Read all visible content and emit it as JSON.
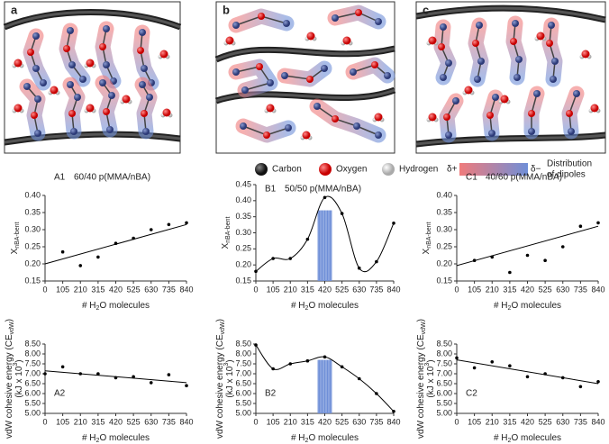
{
  "illustration": {
    "panels": [
      "a",
      "b",
      "c"
    ],
    "legend": {
      "atoms": [
        "Carbon",
        "Oxygen",
        "Hydrogen"
      ],
      "delta_plus": "δ+",
      "delta_minus": "δ−",
      "dipoles": [
        "Distribution",
        "of dipoles"
      ]
    }
  },
  "chart_data": [
    {
      "type": "scatter",
      "label": "A1",
      "title": "60/40 p(MMA/nBA)",
      "x": [
        105,
        210,
        315,
        420,
        525,
        630,
        735,
        840
      ],
      "values": [
        0.235,
        0.195,
        0.22,
        0.26,
        0.275,
        0.3,
        0.315,
        0.32
      ],
      "fit": {
        "x": [
          0,
          840
        ],
        "values": [
          0.2,
          0.315
        ]
      },
      "color": "#000000",
      "xlim": [
        0,
        840
      ],
      "xticks": [
        0,
        105,
        210,
        315,
        420,
        525,
        630,
        735,
        840
      ],
      "ylim": [
        0.15,
        0.4
      ],
      "yticks": [
        {
          "value": 0.15,
          "label": "0.15"
        },
        {
          "value": 0.2,
          "label": "0.20"
        },
        {
          "value": 0.25,
          "label": "0.25"
        },
        {
          "value": 0.3,
          "label": "0.30"
        },
        {
          "value": 0.35,
          "label": "0.35"
        },
        {
          "value": 0.4,
          "label": "0.40"
        }
      ],
      "xlabel": [
        "# H",
        "2",
        "O molecules"
      ],
      "ylabel": [
        "X",
        "nBA-bent"
      ]
    },
    {
      "type": "line",
      "label": "B1",
      "title": "50/50 p(MMA/nBA)",
      "x": [
        0,
        105,
        210,
        315,
        420,
        525,
        630,
        735,
        840
      ],
      "values": [
        0.18,
        0.22,
        0.22,
        0.28,
        0.41,
        0.36,
        0.19,
        0.21,
        0.33
      ],
      "highlight": {
        "x": [
          380,
          460
        ],
        "top": 0.37
      },
      "color": "#000000",
      "highlight_color": "#6f8fd8",
      "xlim": [
        0,
        840
      ],
      "xticks": [
        0,
        105,
        210,
        315,
        420,
        525,
        630,
        735,
        840
      ],
      "ylim": [
        0.15,
        0.45
      ],
      "yticks": [
        {
          "value": 0.15,
          "label": "0.15"
        },
        {
          "value": 0.2,
          "label": "0.20"
        },
        {
          "value": 0.25,
          "label": "0.25"
        },
        {
          "value": 0.3,
          "label": "0.30"
        },
        {
          "value": 0.35,
          "label": "0.35"
        },
        {
          "value": 0.4,
          "label": "0.40"
        },
        {
          "value": 0.45,
          "label": "0.45"
        }
      ],
      "xlabel": [
        "# H",
        "2",
        "O molecules"
      ],
      "ylabel": [
        "X",
        "nBA-bent"
      ]
    },
    {
      "type": "scatter",
      "label": "C1",
      "title": "40/60 p(MMA/nBA)",
      "x": [
        105,
        210,
        315,
        420,
        525,
        630,
        735,
        840
      ],
      "values": [
        0.21,
        0.22,
        0.175,
        0.225,
        0.21,
        0.25,
        0.31,
        0.32
      ],
      "fit": {
        "x": [
          0,
          840
        ],
        "values": [
          0.195,
          0.31
        ]
      },
      "color": "#000000",
      "xlim": [
        0,
        840
      ],
      "xticks": [
        0,
        105,
        210,
        315,
        420,
        525,
        630,
        735,
        840
      ],
      "ylim": [
        0.15,
        0.4
      ],
      "yticks": [
        {
          "value": 0.15,
          "label": "0.15"
        },
        {
          "value": 0.2,
          "label": "0.20"
        },
        {
          "value": 0.25,
          "label": "0.25"
        },
        {
          "value": 0.3,
          "label": "0.30"
        },
        {
          "value": 0.35,
          "label": "0.35"
        },
        {
          "value": 0.4,
          "label": "0.40"
        }
      ],
      "xlabel": [
        "# H",
        "2",
        "O molecules"
      ],
      "ylabel": [
        "X",
        "nBA-bent"
      ]
    },
    {
      "type": "scatter",
      "label": "A2",
      "x": [
        0,
        105,
        210,
        315,
        420,
        525,
        630,
        735,
        840
      ],
      "values": [
        7.0,
        7.35,
        7.0,
        7.0,
        6.8,
        6.85,
        6.55,
        6.95,
        6.4
      ],
      "fit": {
        "x": [
          0,
          840
        ],
        "values": [
          7.15,
          6.55
        ]
      },
      "color": "#000000",
      "xlim": [
        0,
        840
      ],
      "xticks": [
        0,
        105,
        210,
        315,
        420,
        525,
        630,
        735,
        840
      ],
      "ylim": [
        5,
        8.5
      ],
      "yticks": [
        {
          "value": 5,
          "label": "5.00"
        },
        {
          "value": 5.5,
          "label": "5.50"
        },
        {
          "value": 6,
          "label": "6.00"
        },
        {
          "value": 6.5,
          "label": "6.50"
        },
        {
          "value": 7,
          "label": "7.00"
        },
        {
          "value": 7.5,
          "label": "7.50"
        },
        {
          "value": 8,
          "label": "8.00"
        },
        {
          "value": 8.5,
          "label": "8.50"
        }
      ],
      "xlabel": [
        "# H",
        "2",
        "O molecules"
      ],
      "ylabel": [
        "vdW cohesive energy (CE",
        "vdW",
        ")"
      ],
      "ylabel2": [
        "(kJ x 10",
        "3",
        ")"
      ]
    },
    {
      "type": "line",
      "label": "B2",
      "x": [
        0,
        105,
        210,
        315,
        420,
        525,
        630,
        735,
        840
      ],
      "values": [
        8.45,
        7.25,
        7.5,
        7.65,
        7.85,
        7.35,
        6.75,
        6.0,
        5.1
      ],
      "highlight": {
        "x": [
          380,
          460
        ],
        "top": 7.7
      },
      "color": "#000000",
      "highlight_color": "#6f8fd8",
      "xlim": [
        0,
        840
      ],
      "xticks": [
        0,
        105,
        210,
        315,
        420,
        525,
        630,
        735,
        840
      ],
      "ylim": [
        5,
        8.5
      ],
      "yticks": [
        {
          "value": 5,
          "label": "5.00"
        },
        {
          "value": 5.5,
          "label": "5.50"
        },
        {
          "value": 6,
          "label": "6.00"
        },
        {
          "value": 6.5,
          "label": "6.50"
        },
        {
          "value": 7,
          "label": "7.00"
        },
        {
          "value": 7.5,
          "label": "7.50"
        },
        {
          "value": 8,
          "label": "8.00"
        },
        {
          "value": 8.5,
          "label": "8.50"
        }
      ],
      "xlabel": [
        "# H",
        "2",
        "O molecules"
      ],
      "ylabel": [
        "vdW cohesive energy (CE",
        "vdW",
        ")"
      ],
      "ylabel2": [
        "(kJ x 10",
        "3",
        ")"
      ]
    },
    {
      "type": "scatter",
      "label": "C2",
      "x": [
        0,
        105,
        210,
        315,
        420,
        525,
        630,
        735,
        840
      ],
      "values": [
        7.8,
        7.3,
        7.6,
        7.4,
        6.85,
        7.0,
        6.8,
        6.35,
        6.6
      ],
      "fit": {
        "x": [
          0,
          840
        ],
        "values": [
          7.7,
          6.5
        ]
      },
      "color": "#000000",
      "xlim": [
        0,
        840
      ],
      "xticks": [
        0,
        105,
        210,
        315,
        420,
        525,
        630,
        735,
        840
      ],
      "ylim": [
        5,
        8.5
      ],
      "yticks": [
        {
          "value": 5,
          "label": "5.00"
        },
        {
          "value": 5.5,
          "label": "5.50"
        },
        {
          "value": 6,
          "label": "6.00"
        },
        {
          "value": 6.5,
          "label": "6.50"
        },
        {
          "value": 7,
          "label": "7.00"
        },
        {
          "value": 7.5,
          "label": "7.50"
        },
        {
          "value": 8,
          "label": "8.00"
        },
        {
          "value": 8.5,
          "label": "8.50"
        }
      ],
      "xlabel": [
        "# H",
        "2",
        "O molecules"
      ],
      "ylabel": [
        "vdW cohesive energy (CE",
        "vdW",
        ")"
      ],
      "ylabel2": [
        "(kJ x 10",
        "3",
        ")"
      ]
    }
  ]
}
